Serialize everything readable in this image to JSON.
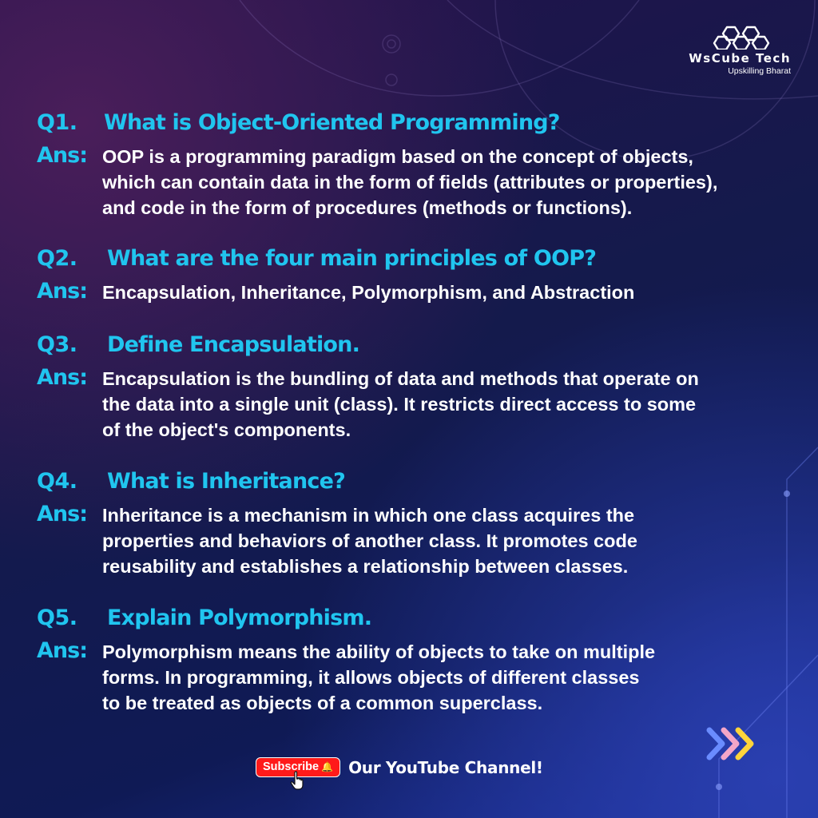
{
  "brand": {
    "name": "WsCube Tech",
    "tagline": "Upskilling Bharat",
    "logo_icon": "hexagon-cluster-icon"
  },
  "colors": {
    "question": "#20c5ef",
    "answer_text": "#ffffff",
    "subscribe_button": "#ff1a1a",
    "chevron_colors": [
      "#6a8cff",
      "#f4a6c8",
      "#ffd43b"
    ]
  },
  "qa": [
    {
      "number": "Q1.",
      "question": "What is Object-Oriented Programming?",
      "answer_label": "Ans:",
      "answer": "OOP is a programming paradigm based on the concept of objects,\nwhich can contain data in the form of fields (attributes or properties),\nand code in the form of procedures (methods or functions)."
    },
    {
      "number": "Q2.",
      "question": "What are the four main principles of OOP?",
      "answer_label": "Ans:",
      "answer": "Encapsulation, Inheritance, Polymorphism, and Abstraction"
    },
    {
      "number": "Q3.",
      "question": "Define Encapsulation.",
      "answer_label": "Ans:",
      "answer": "Encapsulation is the bundling of data and methods that operate on\nthe data into a single unit (class). It restricts direct access to some\nof the object's components."
    },
    {
      "number": "Q4.",
      "question": "What is Inheritance?",
      "answer_label": "Ans:",
      "answer": "Inheritance is a mechanism in which one class acquires the\nproperties and behaviors of another class. It promotes code\nreusability and establishes a relationship between classes."
    },
    {
      "number": "Q5.",
      "question": "Explain Polymorphism.",
      "answer_label": "Ans:",
      "answer": "Polymorphism means the ability of objects to take on multiple\nforms. In programming, it allows objects of different classes\nto be treated as objects of a common superclass."
    }
  ],
  "footer": {
    "subscribe_label": "Subscribe",
    "bell_icon": "bell-icon",
    "cursor_icon": "hand-cursor-icon",
    "channel_text": "Our YouTube Channel!"
  },
  "decor": {
    "chevrons_icon": "triple-chevron-right-icon"
  }
}
